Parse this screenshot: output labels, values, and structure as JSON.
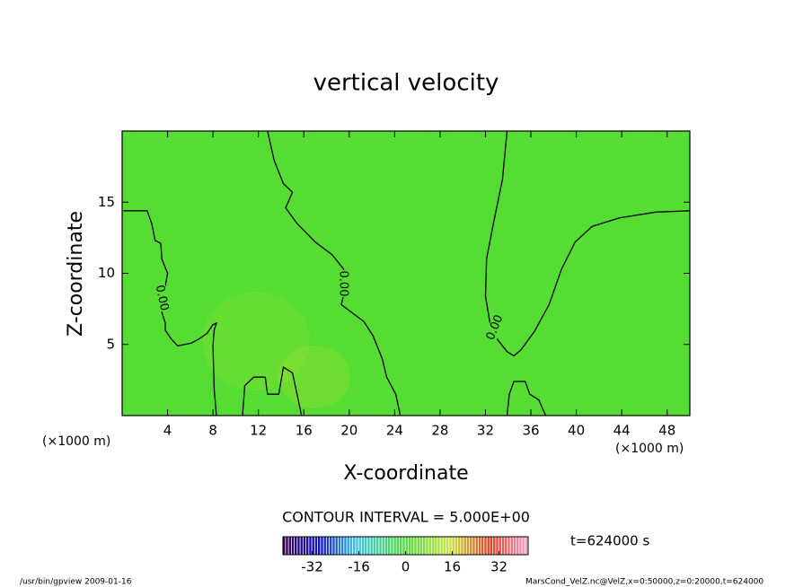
{
  "chart_data": {
    "type": "contour",
    "title": "vertical velocity",
    "x_label": "X-coordinate",
    "y_label": "Z-coordinate",
    "x_unit_left": "(×1000 m)",
    "x_unit_right": "(×1000 m)",
    "xlim": [
      0,
      50
    ],
    "ylim": [
      0,
      20
    ],
    "xticks": [
      4,
      8,
      12,
      16,
      20,
      24,
      28,
      32,
      36,
      40,
      44,
      48
    ],
    "yticks": [
      5,
      10,
      15
    ],
    "contours": [
      {
        "level": 0,
        "label": "0.00",
        "x": [
          0.1,
          2.2,
          2.6,
          2.9,
          3.4,
          3.5,
          4.0,
          3.8,
          3.4,
          3.8,
          3.8,
          4.3,
          4.9,
          6.1,
          6.8,
          7.5,
          8.0,
          8.3,
          8.1,
          8.0,
          8.1,
          8.3
        ],
        "y": [
          14.4,
          14.4,
          13.5,
          12.3,
          12.1,
          11.0,
          10.0,
          9.1,
          7.5,
          6.5,
          6.0,
          5.4,
          4.9,
          5.1,
          5.4,
          5.8,
          6.4,
          6.5,
          6.0,
          4.9,
          1.9,
          0
        ]
      },
      {
        "level": 0,
        "label": "0.00",
        "x": [
          12.8,
          13.4,
          14.2,
          15.0,
          14.4,
          15.4,
          17.0,
          18.5,
          19.5,
          19.7,
          19.3,
          20.3,
          21.3,
          22.1,
          22.9,
          23.3,
          24.1,
          24.5
        ],
        "y": [
          20,
          17.9,
          16.3,
          15.7,
          14.6,
          13.5,
          12.2,
          11.3,
          10.3,
          9.1,
          7.8,
          7.2,
          6.6,
          5.6,
          4.0,
          2.7,
          1.5,
          0
        ]
      },
      {
        "level": 0,
        "label": "0.00",
        "x": [
          33.9,
          33.5,
          32.7,
          32.1,
          32.0,
          32.4,
          33.1,
          33.9,
          34.5,
          35.1,
          36.3,
          37.6,
          38.7,
          39.9,
          41.4,
          43.8,
          47.0,
          50
        ],
        "y": [
          20,
          16.6,
          13.5,
          11.0,
          8.4,
          6.5,
          5.3,
          4.5,
          4.2,
          4.6,
          5.9,
          7.8,
          10.3,
          12.2,
          13.3,
          13.9,
          14.3,
          14.4
        ]
      },
      {
        "level": 0,
        "x": [
          10.6,
          10.8,
          11.6,
          12.6,
          12.8,
          13.8,
          14.2,
          15.0,
          15.4,
          15.8
        ],
        "y": [
          0,
          2.1,
          2.7,
          2.7,
          1.5,
          1.5,
          3.4,
          3.0,
          1.5,
          0
        ]
      },
      {
        "level": 0,
        "x": [
          33.9,
          34.1,
          34.5,
          35.5,
          35.9,
          36.7,
          37.3
        ],
        "y": [
          0,
          1.5,
          2.4,
          2.4,
          1.5,
          1.1,
          0
        ]
      }
    ],
    "colorbar": {
      "clim": [
        -42,
        42
      ],
      "ticks": [
        -32,
        -16,
        0,
        16,
        32
      ]
    },
    "contour_interval": "CONTOUR INTERVAL = 5.000E+00",
    "time_label": "t=624000 s",
    "footer_left": "/usr/bin/gpview  2009-01-16",
    "footer_right": "MarsCond_VelZ.nc@VelZ,x=0:50000,z=0:20000,t=624000"
  }
}
